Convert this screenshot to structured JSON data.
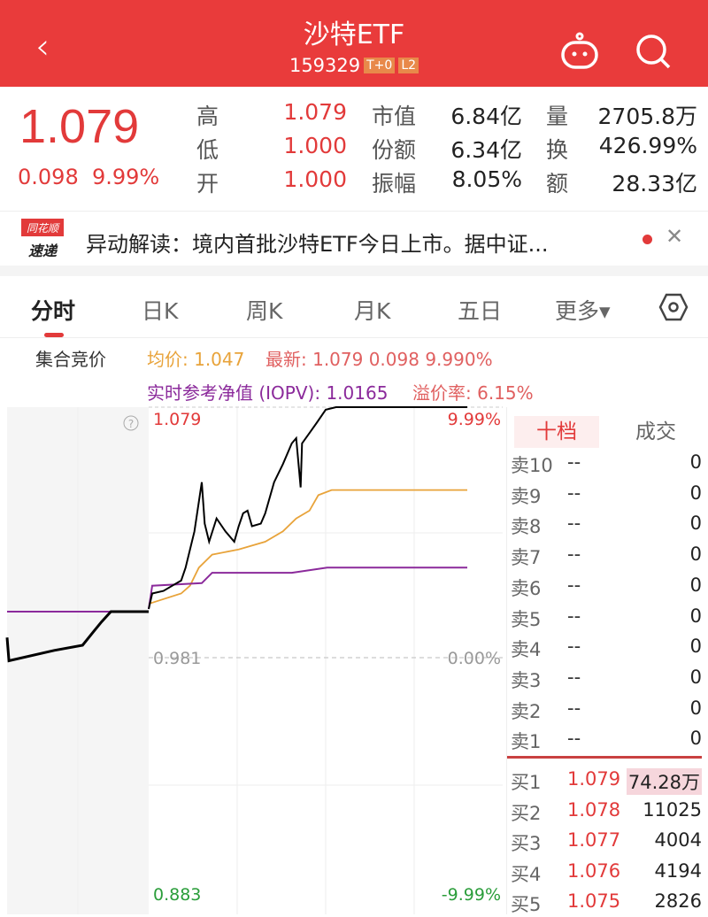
{
  "header": {
    "title": "沙特ETF",
    "code": "159329",
    "tags": [
      "T+0",
      "L2"
    ]
  },
  "quote": {
    "price": "1.079",
    "change": "0.098",
    "change_pct": "9.99%",
    "stats": [
      [
        "高",
        "1.079",
        "市值",
        "6.84亿",
        "量",
        "2705.8万"
      ],
      [
        "低",
        "1.000",
        "份额",
        "6.34亿",
        "换",
        "426.99%"
      ],
      [
        "开",
        "1.000",
        "振幅",
        "8.05%",
        "额",
        "28.33亿"
      ]
    ]
  },
  "news": {
    "logo_top": "同花顺",
    "logo_bottom": "速递",
    "text": "异动解读：境内首批沙特ETF今日上市。据中证..."
  },
  "tabs": [
    "分时",
    "日K",
    "周K",
    "月K",
    "五日",
    "更多▾"
  ],
  "info": {
    "auction": "集合竞价",
    "avg": "均价: 1.047",
    "latest": "最新: 1.079  0.098  9.990%",
    "iopv": "实时参考净值 (IOPV): 1.0165",
    "premium": "溢价率: 6.15%"
  },
  "colors": {
    "brand": "#e93b3b",
    "up": "#e23a3a",
    "down": "#2a9d3a",
    "avg": "#e8a33a",
    "iopv": "#8b2a9b",
    "price": "#000000"
  },
  "chart_data": {
    "type": "line",
    "ylim": [
      0.883,
      1.079
    ],
    "y_labels": {
      "top": "1.079",
      "mid": "0.981",
      "bottom": "0.883"
    },
    "pct_labels": {
      "top": "9.99%",
      "mid": "0.00%",
      "bottom": "-9.99%"
    },
    "auction": {
      "price": [
        [
          0,
          0.99
        ],
        [
          0.2,
          0.981
        ],
        [
          5,
          0.985
        ],
        [
          8,
          0.987
        ],
        [
          9.1,
          0.992
        ],
        [
          10,
          0.996
        ],
        [
          11,
          1.0
        ],
        [
          15,
          1.0
        ]
      ],
      "iopv": [
        [
          0,
          1.0
        ],
        [
          15,
          1.0
        ]
      ]
    },
    "series": {
      "price": [
        [
          0,
          1.001
        ],
        [
          2.4,
          1.007
        ],
        [
          10,
          1.008
        ],
        [
          16,
          1.01
        ],
        [
          22,
          1.012
        ],
        [
          25,
          1.017
        ],
        [
          31,
          1.031
        ],
        [
          36,
          1.05
        ],
        [
          38,
          1.034
        ],
        [
          41,
          1.027
        ],
        [
          46,
          1.036
        ],
        [
          52,
          1.031
        ],
        [
          58,
          1.027
        ],
        [
          61,
          1.033
        ],
        [
          64,
          1.038
        ],
        [
          67,
          1.039
        ],
        [
          70,
          1.033
        ],
        [
          76,
          1.034
        ],
        [
          79,
          1.038
        ],
        [
          85,
          1.05
        ],
        [
          91,
          1.057
        ],
        [
          97,
          1.065
        ],
        [
          100,
          1.067
        ],
        [
          103,
          1.048
        ],
        [
          104,
          1.065
        ],
        [
          109,
          1.069
        ],
        [
          114,
          1.073
        ],
        [
          120,
          1.078
        ],
        [
          127,
          1.079
        ],
        [
          216,
          1.079
        ]
      ],
      "avg": [
        [
          0,
          1.003
        ],
        [
          22,
          1.007
        ],
        [
          28,
          1.01
        ],
        [
          34,
          1.017
        ],
        [
          43,
          1.022
        ],
        [
          61,
          1.024
        ],
        [
          79,
          1.027
        ],
        [
          91,
          1.031
        ],
        [
          100,
          1.036
        ],
        [
          109,
          1.039
        ],
        [
          115,
          1.045
        ],
        [
          124,
          1.047
        ],
        [
          216,
          1.047
        ]
      ],
      "iopv": [
        [
          0,
          1.001
        ],
        [
          2.4,
          1.01
        ],
        [
          36,
          1.011
        ],
        [
          43,
          1.015
        ],
        [
          97,
          1.015
        ],
        [
          121,
          1.017
        ],
        [
          151,
          1.017
        ],
        [
          216,
          1.017
        ]
      ]
    }
  },
  "orderbook": {
    "tabs": [
      "十档",
      "成交"
    ],
    "asks": [
      [
        "卖10",
        "--",
        "0"
      ],
      [
        "卖9",
        "--",
        "0"
      ],
      [
        "卖8",
        "--",
        "0"
      ],
      [
        "卖7",
        "--",
        "0"
      ],
      [
        "卖6",
        "--",
        "0"
      ],
      [
        "卖5",
        "--",
        "0"
      ],
      [
        "卖4",
        "--",
        "0"
      ],
      [
        "卖3",
        "--",
        "0"
      ],
      [
        "卖2",
        "--",
        "0"
      ],
      [
        "卖1",
        "--",
        "0"
      ]
    ],
    "bids": [
      [
        "买1",
        "1.079",
        "74.28万"
      ],
      [
        "买2",
        "1.078",
        "11025"
      ],
      [
        "买3",
        "1.077",
        "4004"
      ],
      [
        "买4",
        "1.076",
        "4194"
      ],
      [
        "买5",
        "1.075",
        "2826"
      ]
    ]
  }
}
